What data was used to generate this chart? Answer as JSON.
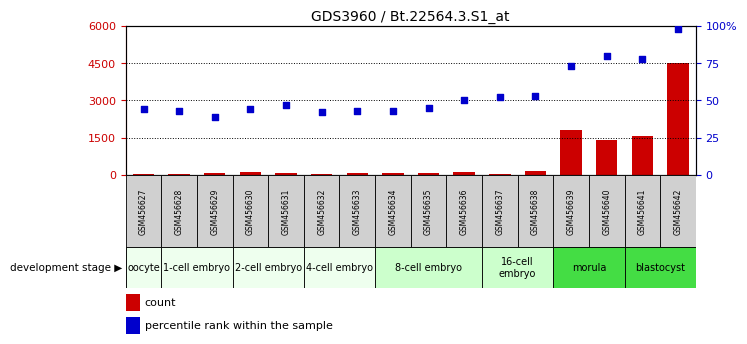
{
  "title": "GDS3960 / Bt.22564.3.S1_at",
  "samples": [
    "GSM456627",
    "GSM456628",
    "GSM456629",
    "GSM456630",
    "GSM456631",
    "GSM456632",
    "GSM456633",
    "GSM456634",
    "GSM456635",
    "GSM456636",
    "GSM456637",
    "GSM456638",
    "GSM456639",
    "GSM456640",
    "GSM456641",
    "GSM456642"
  ],
  "count_values": [
    35,
    30,
    55,
    90,
    80,
    40,
    50,
    60,
    70,
    90,
    45,
    150,
    1800,
    1400,
    1550,
    4500
  ],
  "percentile_values": [
    44,
    43,
    39,
    44,
    47,
    42,
    43,
    43,
    45,
    50,
    52,
    53,
    73,
    80,
    78,
    98
  ],
  "ylim_left": [
    0,
    6000
  ],
  "ylim_right": [
    0,
    100
  ],
  "yticks_left": [
    0,
    1500,
    3000,
    4500,
    6000
  ],
  "yticks_right": [
    0,
    25,
    50,
    75,
    100
  ],
  "ytick_labels_right": [
    "0",
    "25",
    "50",
    "75",
    "100%"
  ],
  "left_axis_color": "#cc0000",
  "right_axis_color": "#0000cc",
  "bar_color": "#cc0000",
  "dot_color": "#0000cc",
  "stage_groups": [
    {
      "label": "oocyte",
      "indices": [
        0
      ],
      "color": "#eeffee"
    },
    {
      "label": "1-cell embryo",
      "indices": [
        1,
        2
      ],
      "color": "#eeffee"
    },
    {
      "label": "2-cell embryo",
      "indices": [
        3,
        4
      ],
      "color": "#eeffee"
    },
    {
      "label": "4-cell embryo",
      "indices": [
        5,
        6
      ],
      "color": "#eeffee"
    },
    {
      "label": "8-cell embryo",
      "indices": [
        7,
        8,
        9
      ],
      "color": "#ccffcc"
    },
    {
      "label": "16-cell\nembryo",
      "indices": [
        10,
        11
      ],
      "color": "#ccffcc"
    },
    {
      "label": "morula",
      "indices": [
        12,
        13
      ],
      "color": "#44dd44"
    },
    {
      "label": "blastocyst",
      "indices": [
        14,
        15
      ],
      "color": "#44dd44"
    }
  ],
  "xlabel_dev": "development stage",
  "legend_count": "count",
  "legend_pct": "percentile rank within the sample",
  "background_color": "#ffffff",
  "grid_color": "#000000",
  "sample_box_color": "#d0d0d0",
  "tick_label_color_left": "#cc0000",
  "tick_label_color_right": "#0000cc"
}
